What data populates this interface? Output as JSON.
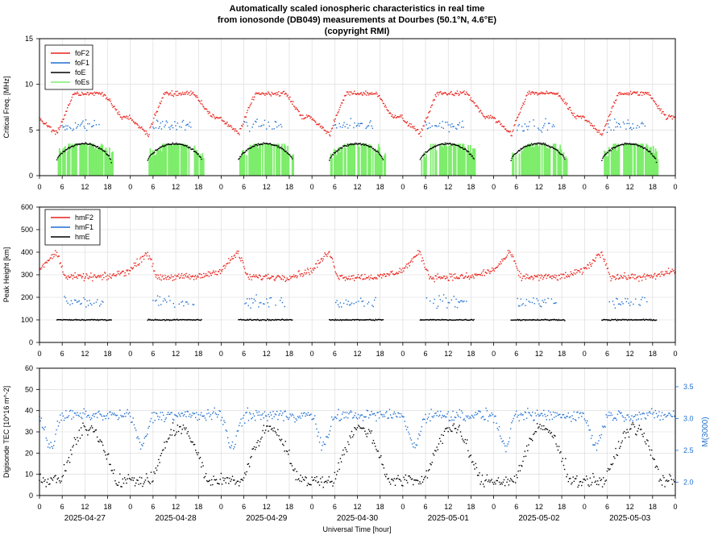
{
  "title_lines": [
    "Automatically scaled ionospheric characteristics in real time",
    "from ionosonde (DB049) measurements at Dourbes (50.1°N, 4.6°E)",
    "(copyright RMI)"
  ],
  "colors": {
    "red": "#e8221b",
    "blue": "#1f6fd0",
    "black": "#000000",
    "green": "#7ded6b",
    "grid": "#d8d8d8"
  },
  "chart_data": [
    {
      "type": "scatter",
      "ylabel": "Critical Freq. [MHz]",
      "ylim": [
        0,
        15
      ],
      "yticks": [
        "0",
        "5",
        "10",
        "15"
      ],
      "xlim": [
        0,
        168
      ],
      "xticks": [
        "0",
        "6",
        "12",
        "18"
      ],
      "legend": [
        "foF2",
        "foF1",
        "foE",
        "foEs"
      ],
      "legend_position": "top-left",
      "series_model": {
        "foF2": {
          "night_min": 5.0,
          "day_max": 9.0,
          "unit": "MHz"
        },
        "foF1": {
          "level": 5.5,
          "hours": [
            6,
            16
          ],
          "unit": "MHz"
        },
        "foE": {
          "peak": 3.5,
          "hours": [
            4.5,
            19
          ],
          "unit": "MHz"
        },
        "foEs": {
          "typical": 3.0,
          "max": 3.5,
          "unit": "MHz"
        }
      }
    },
    {
      "type": "scatter",
      "ylabel": "Peak Height [km]",
      "ylim": [
        0,
        600
      ],
      "yticks": [
        "0",
        "100",
        "200",
        "300",
        "400",
        "500",
        "600"
      ],
      "xlim": [
        0,
        168
      ],
      "xticks": [
        "0",
        "6",
        "12",
        "18"
      ],
      "legend": [
        "hmF2",
        "hmF1",
        "hmE"
      ],
      "legend_position": "top-left",
      "series_model": {
        "hmF2": {
          "day": 290,
          "night": 380
        },
        "hmF1": {
          "level": 180,
          "hours": [
            6,
            17
          ]
        },
        "hmE": {
          "level": 100,
          "hours": [
            4.5,
            19
          ]
        }
      }
    },
    {
      "type": "scatter",
      "ylabel": "Digisonde TEC [10^16 m^-2]",
      "ylim": [
        0,
        60
      ],
      "yticks": [
        "0",
        "10",
        "20",
        "30",
        "40",
        "50",
        "60"
      ],
      "y2label": "M(3000)",
      "y2ticks": [
        "2.0",
        "2.5",
        "3.0",
        "3.5"
      ],
      "y2lim": [
        1.79,
        3.79
      ],
      "xlim": [
        0,
        168
      ],
      "xticks": [
        "0",
        "6",
        "12",
        "18"
      ],
      "xlabel": "Universal Time [hour]",
      "dates": [
        "2025-04-27",
        "2025-04-28",
        "2025-04-29",
        "2025-04-30",
        "2025-05-01",
        "2025-05-02",
        "2025-05-03"
      ],
      "series_model": {
        "TEC": {
          "min": 7,
          "max": 32,
          "peak_hour": 13
        },
        "M(3000)": {
          "day": 3.05,
          "night_dip": 2.55
        }
      }
    }
  ]
}
